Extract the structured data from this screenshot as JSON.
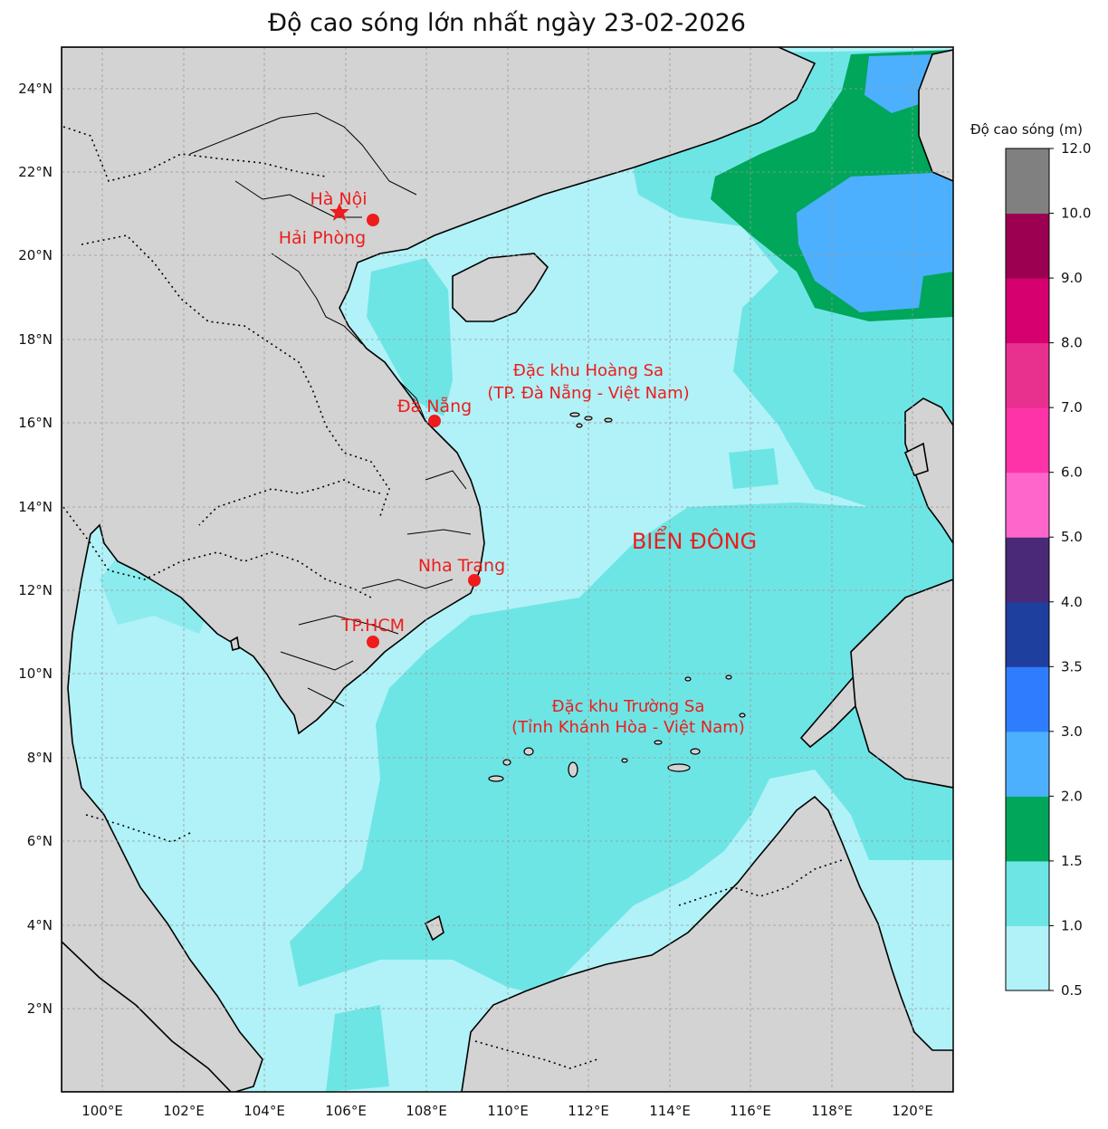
{
  "title": "Độ cao sóng lớn nhất ngày 23-02-2026",
  "axes": {
    "lon_labels": [
      "100°E",
      "102°E",
      "104°E",
      "106°E",
      "108°E",
      "110°E",
      "112°E",
      "114°E",
      "116°E",
      "118°E",
      "120°E"
    ],
    "lat_labels": [
      "2°N",
      "4°N",
      "6°N",
      "8°N",
      "10°N",
      "12°N",
      "14°N",
      "16°N",
      "18°N",
      "20°N",
      "22°N",
      "24°N"
    ],
    "lon_range": [
      99,
      121
    ],
    "lat_range": [
      0,
      25
    ]
  },
  "cities": [
    {
      "name": "Hà Nội",
      "marker": "star-icon",
      "lon": 105.85,
      "lat": 21.03
    },
    {
      "name": "Hải Phòng",
      "marker": "dot-icon",
      "lon": 106.68,
      "lat": 20.86
    },
    {
      "name": "Đà Nẵng",
      "marker": "dot-icon",
      "lon": 108.2,
      "lat": 16.05
    },
    {
      "name": "Nha Trang",
      "marker": "dot-icon",
      "lon": 109.19,
      "lat": 12.24
    },
    {
      "name": "TP.HCM",
      "marker": "dot-icon",
      "lon": 106.66,
      "lat": 10.8
    }
  ],
  "regions": {
    "hoang_sa": {
      "line1": "Đặc khu Hoàng Sa",
      "line2": "(TP. Đà Nẵng - Việt Nam)"
    },
    "truong_sa": {
      "line1": "Đặc khu Trường Sa",
      "line2": "(Tỉnh Khánh Hòa - Việt Nam)"
    },
    "sea": "BIỂN ĐÔNG"
  },
  "colorbar": {
    "title": "Độ cao sóng (m)",
    "levels": [
      "0.5",
      "1.0",
      "1.5",
      "2.0",
      "3.0",
      "3.5",
      "4.0",
      "5.0",
      "6.0",
      "7.0",
      "8.0",
      "9.0",
      "10.0",
      "12.0"
    ],
    "colors": [
      "#b0f2f7",
      "#6ee5e5",
      "#00a65a",
      "#4db0ff",
      "#2e7dff",
      "#1f3f9e",
      "#4a2a78",
      "#ff66cc",
      "#ff33a8",
      "#e8308f",
      "#d6006f",
      "#9c0050",
      "#808080"
    ]
  },
  "map_colors": {
    "land": "#d3d3d3",
    "sea_low": "#b0f2f7",
    "sea_mid": "#6ee5e5"
  }
}
